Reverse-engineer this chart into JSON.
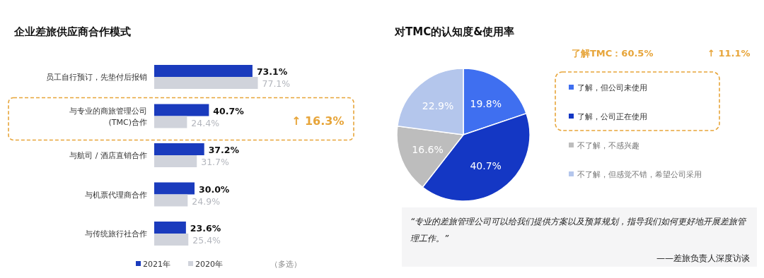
{
  "chart_data": [
    {
      "type": "bar",
      "orientation": "horizontal",
      "title": "企业差旅供应商合作模式",
      "categories": [
        "员工自行预订，先垫付后报销",
        "与专业的商旅管理公司(TMC)合作",
        "与航司 / 酒店直销合作",
        "与机票代理商合作",
        "与传统旅行社合作"
      ],
      "series": [
        {
          "name": "2021年",
          "color": "#1a3bbd",
          "values": [
            73.1,
            40.7,
            37.2,
            30.0,
            23.6
          ],
          "value_labels": [
            "73.1%",
            "40.7%",
            "37.2%",
            "30.0%",
            "23.6%"
          ]
        },
        {
          "name": "2020年",
          "color": "#d0d3db",
          "values": [
            77.1,
            24.4,
            31.7,
            24.9,
            25.4
          ],
          "value_labels": [
            "77.1%",
            "24.4%",
            "31.7%",
            "24.9%",
            "25.4%"
          ]
        }
      ],
      "legend": "bottom",
      "annotations": [
        "↑ 16.3%",
        "（多选）"
      ]
    },
    {
      "type": "pie",
      "title": "对TMC的认知度&使用率",
      "categories": [
        "了解，但公司未使用",
        "了解，公司正在使用",
        "不了解，不感兴趣",
        "不了解，但感觉不错，希望公司采用"
      ],
      "values": [
        19.8,
        40.7,
        16.6,
        22.9
      ],
      "colors": [
        "#3f6ff0",
        "#1437c4",
        "#bdbdbd",
        "#b4c6ec"
      ],
      "value_labels": [
        "19.8%",
        "40.7%",
        "16.6%",
        "22.9%"
      ],
      "legend": "right",
      "annotations": [
        "了解TMC：60.5%",
        "↑ 11.1%",
        "“专业的差旅管理公司可以给我们提供方案以及预算规划，指导我们如何更好地开展差旅管理工作。”",
        "——差旅负责人深度访谈"
      ]
    }
  ]
}
